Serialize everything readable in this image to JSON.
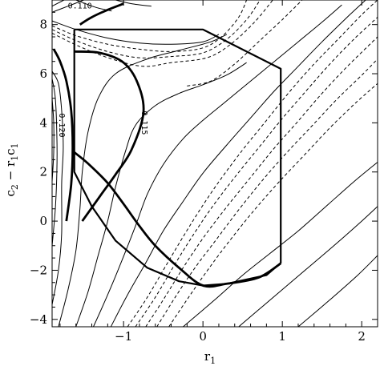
{
  "chart_data": {
    "type": "contour",
    "title": "",
    "xlabel": "r",
    "xlabel_sub": "1",
    "ylabel_parts": [
      "c",
      "2",
      " − r",
      "1",
      "c",
      "1"
    ],
    "xlim": [
      -1.9,
      2.2
    ],
    "ylim": [
      -4.3,
      9.0
    ],
    "x_ticks": [
      -1,
      0,
      1,
      2
    ],
    "x_tick_labels": [
      "−1",
      "0",
      "1",
      "2"
    ],
    "y_ticks": [
      -4,
      -2,
      0,
      2,
      4,
      6,
      8
    ],
    "y_tick_labels": [
      "−4",
      "−2",
      "0",
      "2",
      "4",
      "6",
      "8"
    ],
    "contour_labels": [
      {
        "text": "0.110",
        "x": -1.55,
        "y": 8.75,
        "rotate": 0
      },
      {
        "text": "0.120",
        "x": -1.78,
        "y": 3.9,
        "rotate": 90
      },
      {
        "text": "0.115",
        "x": -0.74,
        "y": 4.0,
        "rotate": 90
      }
    ],
    "region_boundary": [
      [
        -1.62,
        7.8
      ],
      [
        0.0,
        7.8
      ],
      [
        0.98,
        6.2
      ],
      [
        0.98,
        -1.7
      ],
      [
        0.8,
        -2.2
      ],
      [
        0.3,
        -2.55
      ],
      [
        0.0,
        -2.62
      ],
      [
        -0.3,
        -2.45
      ],
      [
        -0.7,
        -1.9
      ],
      [
        -1.1,
        -0.8
      ],
      [
        -1.4,
        0.6
      ],
      [
        -1.62,
        2.0
      ],
      [
        -1.62,
        7.8
      ]
    ],
    "bold_contours": [
      [
        [
          -1.55,
          8.0
        ],
        [
          -1.4,
          8.3
        ],
        [
          -1.2,
          8.6
        ],
        [
          -1.0,
          8.85
        ]
      ],
      [
        [
          -1.72,
          0.0
        ],
        [
          -1.66,
          1.5
        ],
        [
          -1.64,
          3.0
        ],
        [
          -1.66,
          4.5
        ],
        [
          -1.72,
          5.7
        ],
        [
          -1.8,
          6.5
        ],
        [
          -1.88,
          7.0
        ]
      ],
      [
        [
          -1.62,
          2.8
        ],
        [
          -1.45,
          2.35
        ],
        [
          -1.2,
          1.55
        ],
        [
          -1.0,
          0.7
        ],
        [
          -0.8,
          -0.2
        ],
        [
          -0.6,
          -1.0
        ],
        [
          -0.3,
          -1.9
        ],
        [
          0.0,
          -2.62
        ],
        [
          0.3,
          -2.55
        ],
        [
          0.7,
          -2.3
        ],
        [
          0.98,
          -1.72
        ]
      ],
      [
        [
          -1.62,
          6.9
        ],
        [
          -1.3,
          6.85
        ],
        [
          -1.0,
          6.45
        ],
        [
          -0.82,
          5.6
        ],
        [
          -0.75,
          4.4
        ],
        [
          -0.9,
          2.9
        ],
        [
          -1.1,
          1.9
        ],
        [
          -1.3,
          1.0
        ],
        [
          -1.52,
          0.0
        ]
      ]
    ],
    "solid_contours": [
      [
        [
          -1.9,
          -3.4
        ],
        [
          -1.82,
          -2.0
        ],
        [
          -1.78,
          -0.5
        ],
        [
          -1.78,
          1.5
        ],
        [
          -1.76,
          3.0
        ],
        [
          -1.78,
          4.5
        ],
        [
          -1.82,
          5.6
        ],
        [
          -1.9,
          6.1
        ]
      ],
      [
        [
          -1.9,
          -1.0
        ],
        [
          -1.86,
          0.5
        ],
        [
          -1.84,
          2.0
        ],
        [
          -1.84,
          3.5
        ],
        [
          -1.86,
          5.0
        ],
        [
          -1.9,
          5.8
        ]
      ],
      [
        [
          -1.9,
          1.6
        ],
        [
          -1.88,
          2.8
        ],
        [
          -1.88,
          4.0
        ],
        [
          -1.9,
          5.0
        ]
      ],
      [
        [
          -1.82,
          -4.3
        ],
        [
          -1.7,
          -2.8
        ],
        [
          -1.6,
          -1.2
        ],
        [
          -1.55,
          0.5
        ],
        [
          -1.52,
          2.0
        ],
        [
          -1.45,
          3.6
        ],
        [
          -1.32,
          5.0
        ],
        [
          -1.1,
          6.0
        ],
        [
          -0.7,
          6.6
        ],
        [
          -0.3,
          6.95
        ],
        [
          0.1,
          7.3
        ],
        [
          0.3,
          7.6
        ]
      ],
      [
        [
          -1.6,
          -4.3
        ],
        [
          -1.45,
          -2.9
        ],
        [
          -1.32,
          -1.4
        ],
        [
          -1.2,
          0.0
        ],
        [
          -1.1,
          1.4
        ],
        [
          -0.98,
          2.8
        ],
        [
          -0.85,
          3.9
        ],
        [
          -0.6,
          4.7
        ],
        [
          -0.3,
          5.2
        ],
        [
          0.0,
          5.55
        ],
        [
          0.3,
          5.95
        ],
        [
          0.55,
          6.45
        ]
      ],
      [
        [
          -1.38,
          -4.3
        ],
        [
          -1.2,
          -3.0
        ],
        [
          -1.02,
          -1.6
        ],
        [
          -0.85,
          -0.2
        ],
        [
          -0.7,
          1.1
        ],
        [
          -0.5,
          2.3
        ],
        [
          -0.25,
          3.35
        ],
        [
          0.0,
          4.1
        ],
        [
          0.3,
          4.9
        ],
        [
          0.6,
          5.7
        ],
        [
          0.9,
          6.5
        ],
        [
          1.2,
          7.3
        ],
        [
          1.5,
          8.1
        ],
        [
          1.75,
          8.8
        ]
      ],
      [
        [
          -1.16,
          -4.3
        ],
        [
          -0.95,
          -3.0
        ],
        [
          -0.72,
          -1.7
        ],
        [
          -0.5,
          -0.4
        ],
        [
          -0.25,
          0.8
        ],
        [
          0.0,
          1.95
        ],
        [
          0.3,
          3.1
        ],
        [
          0.6,
          4.2
        ],
        [
          0.9,
          5.3
        ],
        [
          1.2,
          6.3
        ],
        [
          1.5,
          7.3
        ],
        [
          1.85,
          8.4
        ],
        [
          2.05,
          9.0
        ]
      ],
      [
        [
          -1.9,
          8.15
        ],
        [
          -1.6,
          7.8
        ],
        [
          -1.2,
          7.45
        ],
        [
          -0.8,
          7.25
        ],
        [
          -0.4,
          7.2
        ],
        [
          0.0,
          7.3
        ],
        [
          0.2,
          7.6
        ]
      ],
      [
        [
          -1.9,
          8.5
        ],
        [
          -1.7,
          8.75
        ],
        [
          -1.5,
          9.0
        ]
      ],
      [
        [
          -1.9,
          8.75
        ],
        [
          -1.75,
          9.0
        ]
      ],
      [
        [
          -1.6,
          9.0
        ],
        [
          -1.35,
          8.7
        ],
        [
          -1.15,
          8.55
        ]
      ],
      [
        [
          -1.1,
          9.0
        ],
        [
          -0.9,
          8.85
        ],
        [
          -0.65,
          8.75
        ]
      ],
      [
        [
          -0.25,
          -4.3
        ],
        [
          0.15,
          -3.2
        ],
        [
          0.5,
          -2.2
        ],
        [
          0.85,
          -1.3
        ],
        [
          1.2,
          -0.4
        ],
        [
          1.55,
          0.6
        ],
        [
          1.9,
          1.6
        ],
        [
          2.2,
          2.4
        ]
      ],
      [
        [
          0.45,
          -4.3
        ],
        [
          0.85,
          -3.2
        ],
        [
          1.25,
          -2.1
        ],
        [
          1.65,
          -1.0
        ],
        [
          2.0,
          0.0
        ],
        [
          2.2,
          0.6
        ]
      ],
      [
        [
          1.2,
          -4.3
        ],
        [
          1.6,
          -3.2
        ],
        [
          1.95,
          -2.2
        ],
        [
          2.2,
          -1.4
        ]
      ]
    ],
    "dashed_contours": [
      [
        [
          -1.9,
          7.95
        ],
        [
          -1.6,
          7.55
        ],
        [
          -1.2,
          7.2
        ],
        [
          -0.8,
          7.0
        ],
        [
          -0.4,
          6.9
        ],
        [
          0.0,
          7.05
        ],
        [
          0.25,
          7.55
        ],
        [
          0.45,
          8.3
        ],
        [
          0.55,
          9.0
        ]
      ],
      [
        [
          -1.9,
          7.8
        ],
        [
          -1.6,
          7.35
        ],
        [
          -1.2,
          6.9
        ],
        [
          -0.8,
          6.65
        ],
        [
          -0.4,
          6.7
        ],
        [
          0.0,
          6.85
        ],
        [
          0.3,
          7.4
        ],
        [
          0.55,
          8.2
        ],
        [
          0.72,
          9.0
        ]
      ],
      [
        [
          -1.9,
          7.65
        ],
        [
          -1.55,
          7.1
        ],
        [
          -1.15,
          6.6
        ],
        [
          -0.75,
          6.3
        ],
        [
          -0.4,
          6.45
        ],
        [
          0.05,
          6.65
        ],
        [
          0.35,
          7.2
        ],
        [
          0.65,
          8.1
        ],
        [
          0.88,
          9.0
        ]
      ],
      [
        [
          -0.2,
          5.5
        ],
        [
          0.1,
          5.7
        ],
        [
          0.4,
          6.4
        ],
        [
          0.7,
          7.3
        ],
        [
          1.0,
          8.2
        ],
        [
          1.25,
          9.0
        ]
      ],
      [
        [
          -0.95,
          -4.3
        ],
        [
          -0.72,
          -3.2
        ],
        [
          -0.5,
          -2.0
        ],
        [
          -0.28,
          -0.8
        ],
        [
          -0.05,
          0.4
        ],
        [
          0.2,
          1.6
        ],
        [
          0.5,
          2.9
        ],
        [
          0.8,
          4.1
        ],
        [
          1.1,
          5.3
        ],
        [
          1.4,
          6.4
        ],
        [
          1.7,
          7.4
        ],
        [
          2.0,
          8.4
        ],
        [
          2.2,
          9.0
        ]
      ],
      [
        [
          -0.85,
          -4.3
        ],
        [
          -0.6,
          -3.1
        ],
        [
          -0.38,
          -1.9
        ],
        [
          -0.15,
          -0.7
        ],
        [
          0.1,
          0.5
        ],
        [
          0.38,
          1.7
        ],
        [
          0.68,
          2.9
        ],
        [
          0.98,
          4.1
        ],
        [
          1.3,
          5.3
        ],
        [
          1.6,
          6.4
        ],
        [
          1.9,
          7.4
        ],
        [
          2.2,
          8.3
        ]
      ],
      [
        [
          -0.72,
          -4.3
        ],
        [
          -0.48,
          -3.1
        ],
        [
          -0.25,
          -1.9
        ],
        [
          0.0,
          -0.7
        ],
        [
          0.28,
          0.5
        ],
        [
          0.58,
          1.7
        ],
        [
          0.88,
          2.9
        ],
        [
          1.18,
          4.0
        ],
        [
          1.5,
          5.2
        ],
        [
          1.82,
          6.3
        ],
        [
          2.2,
          7.5
        ]
      ],
      [
        [
          -0.58,
          -4.3
        ],
        [
          -0.35,
          -3.1
        ],
        [
          -0.1,
          -1.9
        ],
        [
          0.18,
          -0.7
        ],
        [
          0.46,
          0.5
        ],
        [
          0.76,
          1.7
        ],
        [
          1.06,
          2.8
        ],
        [
          1.38,
          3.9
        ],
        [
          1.7,
          5.0
        ],
        [
          2.02,
          6.0
        ],
        [
          2.2,
          6.6
        ]
      ],
      [
        [
          -0.43,
          -4.3
        ],
        [
          -0.18,
          -3.1
        ],
        [
          0.08,
          -1.9
        ],
        [
          0.36,
          -0.7
        ],
        [
          0.66,
          0.5
        ],
        [
          0.96,
          1.6
        ],
        [
          1.28,
          2.7
        ],
        [
          1.6,
          3.8
        ],
        [
          1.92,
          4.8
        ],
        [
          2.2,
          5.6
        ]
      ]
    ]
  }
}
